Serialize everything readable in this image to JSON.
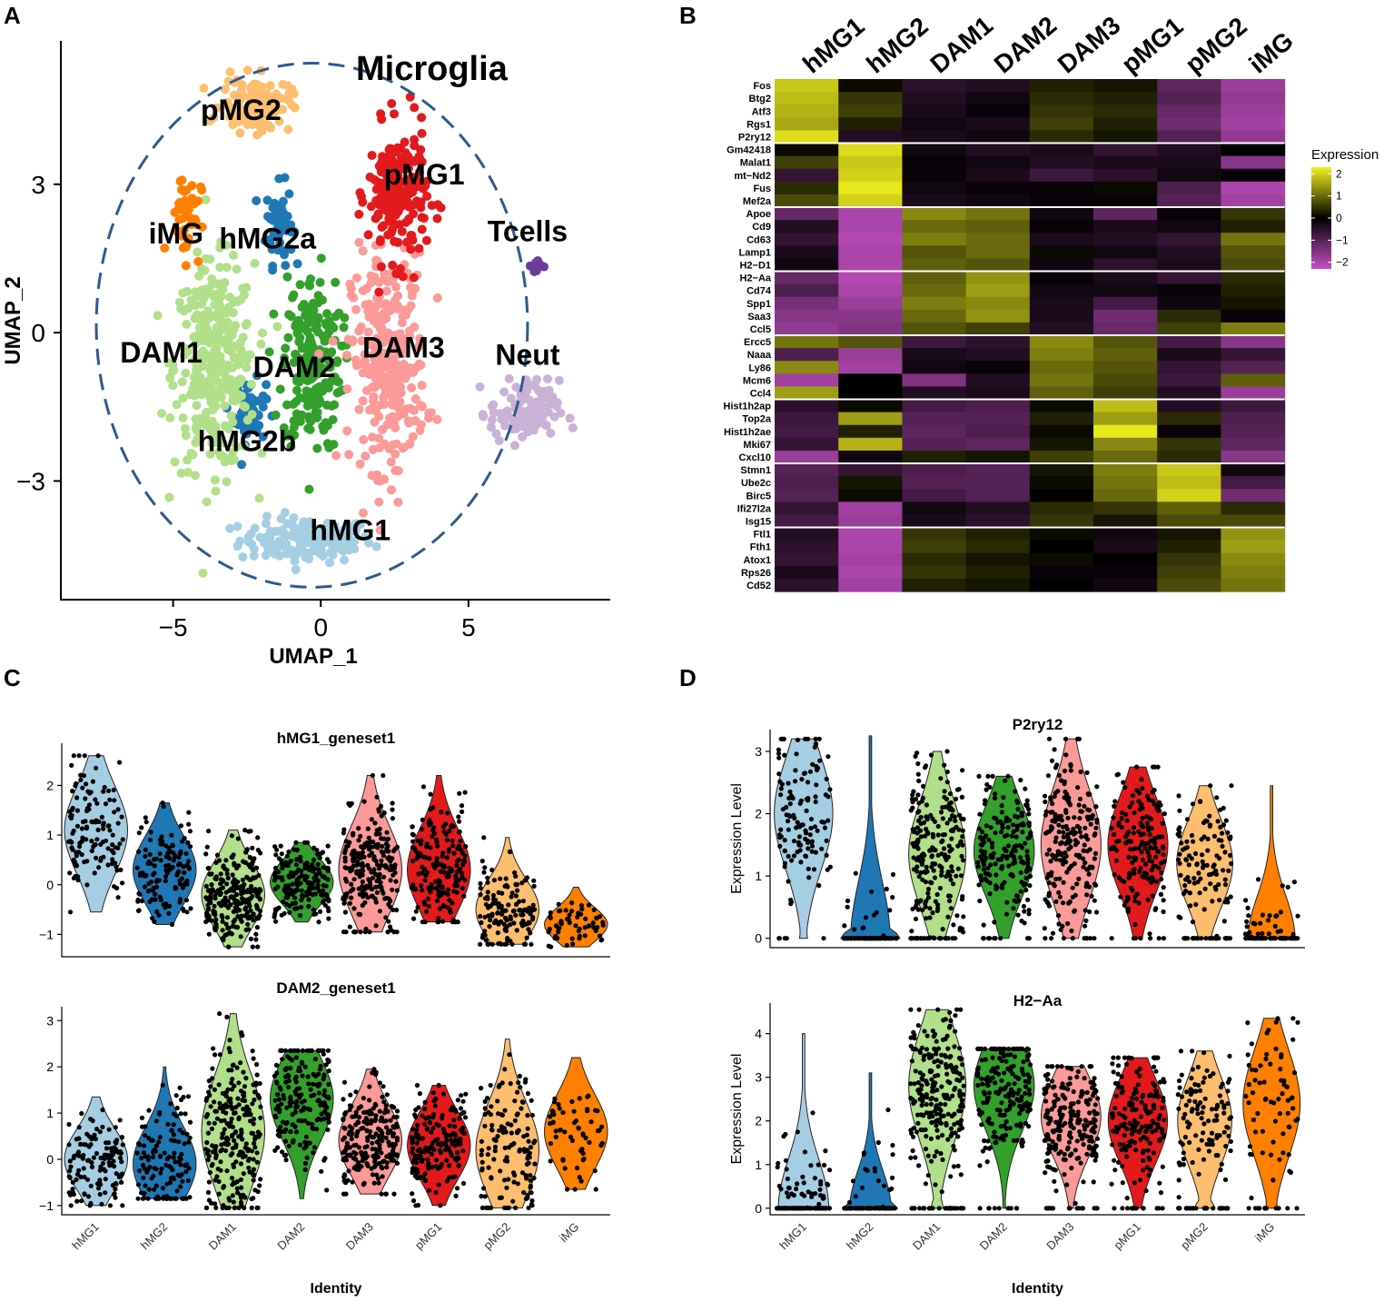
{
  "panels": {
    "A": "A",
    "B": "B",
    "C": "C",
    "D": "D"
  },
  "colors": {
    "hMG1": "#a6cee3",
    "hMG2": "#1f78b4",
    "DAM1": "#b2df8a",
    "DAM2": "#33a02c",
    "DAM3": "#fb9a99",
    "pMG1": "#e31a1c",
    "pMG2": "#fdbf6f",
    "iMG": "#ff7f00",
    "Tcells": "#6a3d9a",
    "Neut": "#cab2d6",
    "ellipse": "#2e5a8a",
    "heat_low": "#c44fc4",
    "heat_mid": "#000000",
    "heat_high": "#f2f21e"
  },
  "chart_data": [
    {
      "type": "scatter",
      "panel": "A",
      "xlabel": "UMAP_1",
      "ylabel": "UMAP_2",
      "xlim": [
        -8.8,
        9.8
      ],
      "ylim": [
        -5.4,
        5.9
      ],
      "xticks": [
        -5,
        0,
        5
      ],
      "yticks": [
        -3,
        0,
        3
      ],
      "xtick_labels": [
        "−5",
        "0",
        "5"
      ],
      "ytick_labels": [
        "−3",
        "0",
        "3"
      ],
      "grid": false,
      "annotation": "Microglia",
      "microglia_ellipse": {
        "center": [
          -0.3,
          0.15
        ],
        "radii": [
          7.3,
          5.3
        ]
      },
      "clusters": [
        {
          "name": "hMG1",
          "label": "hMG1",
          "center": [
            -0.5,
            -4.2
          ],
          "spread": [
            2.5,
            0.5
          ],
          "n": 150,
          "label_at": [
            1.0,
            -4.2
          ]
        },
        {
          "name": "hMG2a",
          "cluster": "hMG2",
          "label": "hMG2a",
          "center": [
            -1.4,
            2.2
          ],
          "spread": [
            0.5,
            0.9
          ],
          "n": 60,
          "label_at": [
            -1.8,
            1.7
          ]
        },
        {
          "name": "hMG2b",
          "cluster": "hMG2",
          "label": "hMG2b",
          "center": [
            -2.4,
            -1.6
          ],
          "spread": [
            0.6,
            0.7
          ],
          "n": 60,
          "label_at": [
            -2.5,
            -2.4
          ]
        },
        {
          "name": "DAM1",
          "label": "DAM1",
          "center": [
            -3.6,
            -0.7
          ],
          "spread": [
            1.5,
            2.3
          ],
          "n": 340,
          "label_at": [
            -5.4,
            -0.6
          ]
        },
        {
          "name": "DAM2",
          "label": "DAM2",
          "center": [
            -0.3,
            -0.6
          ],
          "spread": [
            1.1,
            2.0
          ],
          "n": 210,
          "label_at": [
            -0.9,
            -0.9
          ]
        },
        {
          "name": "DAM3",
          "label": "DAM3",
          "center": [
            2.3,
            -0.6
          ],
          "spread": [
            1.4,
            2.4
          ],
          "n": 300,
          "label_at": [
            2.8,
            -0.5
          ]
        },
        {
          "name": "pMG1",
          "label": "pMG1",
          "center": [
            2.6,
            2.8
          ],
          "spread": [
            1.1,
            1.5
          ],
          "n": 210,
          "label_at": [
            3.5,
            3.0
          ]
        },
        {
          "name": "pMG2",
          "label": "pMG2",
          "center": [
            -2.2,
            4.6
          ],
          "spread": [
            1.3,
            0.6
          ],
          "n": 120,
          "label_at": [
            -2.7,
            4.3
          ]
        },
        {
          "name": "iMG",
          "label": "iMG",
          "center": [
            -4.6,
            2.4
          ],
          "spread": [
            0.6,
            1.0
          ],
          "n": 45,
          "label_at": [
            -4.9,
            1.8
          ]
        },
        {
          "name": "Tcells",
          "label": "Tcells",
          "center": [
            7.3,
            1.35
          ],
          "spread": [
            0.2,
            0.15
          ],
          "n": 14,
          "label_at": [
            7.0,
            1.85
          ]
        },
        {
          "name": "Neut",
          "label": "Neut",
          "center": [
            6.9,
            -1.6
          ],
          "spread": [
            1.3,
            0.7
          ],
          "n": 110,
          "label_at": [
            7.0,
            -0.65
          ]
        }
      ]
    },
    {
      "type": "heatmap",
      "panel": "B",
      "legend_title": "Expression",
      "scale_range": [
        -2.3,
        2.3
      ],
      "legend_ticks": [
        2,
        1,
        0,
        -1,
        -2
      ],
      "legend_tick_labels": [
        "2",
        "1",
        "0",
        "−1",
        "−2"
      ],
      "columns": [
        "hMG1",
        "hMG2",
        "DAM1",
        "DAM2",
        "DAM3",
        "pMG1",
        "pMG2",
        "iMG"
      ],
      "block_separators_after_rows": [
        4,
        9,
        14,
        19,
        24,
        29,
        34
      ],
      "genes": [
        "Fos",
        "Btg2",
        "Atf3",
        "Rgs1",
        "P2ry12",
        "Gm42418",
        "Malat1",
        "mt−Nd2",
        "Fus",
        "Mef2a",
        "Apoe",
        "Cd9",
        "Cd63",
        "Lamp1",
        "H2−D1",
        "H2−Aa",
        "Cd74",
        "Spp1",
        "Saa3",
        "Ccl5",
        "Ercc5",
        "Naaa",
        "Ly86",
        "Mcm6",
        "Ccl4",
        "Hist1h2ap",
        "Top2a",
        "Hist1h2ae",
        "Mki67",
        "Cxcl10",
        "Stmn1",
        "Ube2c",
        "Birc5",
        "Ifi27l2a",
        "Isg15",
        "Ftl1",
        "Fth1",
        "Atox1",
        "Rps26",
        "Cd52"
      ],
      "values": [
        [
          1.9,
          0.1,
          -0.5,
          -0.4,
          0.3,
          0.2,
          -1.1,
          -1.8
        ],
        [
          1.8,
          0.5,
          -0.4,
          -0.2,
          0.4,
          0.3,
          -1.0,
          -1.7
        ],
        [
          1.7,
          0.6,
          -0.3,
          -0.1,
          0.5,
          0.4,
          -1.2,
          -1.8
        ],
        [
          1.6,
          0.3,
          -0.2,
          -0.3,
          0.6,
          0.3,
          -1.3,
          -1.9
        ],
        [
          2.1,
          -0.4,
          -0.3,
          -0.2,
          0.4,
          0.2,
          -1.0,
          -1.7
        ],
        [
          0.1,
          2.1,
          -0.2,
          -0.4,
          -0.3,
          -0.6,
          -0.4,
          0.0
        ],
        [
          0.6,
          1.9,
          -0.1,
          -0.2,
          -0.4,
          -0.3,
          -0.3,
          -1.6
        ],
        [
          -0.6,
          2.0,
          -0.1,
          -0.3,
          -0.7,
          -0.5,
          -0.2,
          -0.1
        ],
        [
          0.4,
          2.2,
          -0.2,
          -0.1,
          -0.1,
          0.1,
          -0.9,
          -2.0
        ],
        [
          0.7,
          2.0,
          -0.3,
          -0.2,
          -0.1,
          -0.1,
          -1.0,
          -1.9
        ],
        [
          -1.2,
          -2.0,
          1.3,
          1.1,
          -0.2,
          -1.1,
          -0.1,
          0.5
        ],
        [
          -0.4,
          -2.0,
          1.0,
          0.9,
          -0.1,
          -0.3,
          -0.2,
          0.3
        ],
        [
          -0.6,
          -2.1,
          1.2,
          1.0,
          -0.3,
          -0.4,
          -0.6,
          1.1
        ],
        [
          -0.3,
          -2.0,
          0.8,
          1.0,
          0.1,
          -0.2,
          -0.4,
          0.8
        ],
        [
          -0.2,
          -2.0,
          0.9,
          0.8,
          -0.2,
          -0.5,
          -0.3,
          0.7
        ],
        [
          -1.2,
          -2.1,
          0.9,
          1.4,
          -0.1,
          -0.3,
          -0.6,
          0.4
        ],
        [
          -0.9,
          -2.0,
          1.0,
          1.5,
          -0.2,
          -0.2,
          -0.1,
          0.3
        ],
        [
          -1.4,
          -1.8,
          1.2,
          1.3,
          -0.3,
          -0.8,
          -0.2,
          0.2
        ],
        [
          -1.6,
          -1.6,
          1.0,
          1.4,
          -0.3,
          -1.3,
          0.4,
          -0.1
        ],
        [
          -1.7,
          -1.5,
          0.8,
          0.6,
          -0.4,
          -1.2,
          0.6,
          1.2
        ],
        [
          1.1,
          0.8,
          -0.7,
          -0.5,
          1.3,
          0.8,
          -0.8,
          -1.6
        ],
        [
          -0.9,
          -1.8,
          -0.3,
          -0.4,
          1.2,
          0.9,
          -0.3,
          -0.6
        ],
        [
          1.3,
          -1.9,
          -0.2,
          -0.1,
          1.0,
          0.8,
          -0.6,
          -1.0
        ],
        [
          -1.9,
          0.0,
          -1.5,
          -0.4,
          1.1,
          0.7,
          -0.7,
          0.9
        ],
        [
          1.5,
          0.0,
          -0.4,
          -0.3,
          0.9,
          0.6,
          -0.4,
          -1.8
        ],
        [
          -0.5,
          0.1,
          -0.8,
          -0.9,
          0.1,
          1.8,
          -0.4,
          -0.7
        ],
        [
          -0.7,
          1.5,
          -1.0,
          -1.0,
          0.3,
          1.5,
          0.4,
          -0.9
        ],
        [
          -0.8,
          0.3,
          -1.1,
          -0.9,
          0.1,
          2.2,
          -0.1,
          -1.0
        ],
        [
          -0.6,
          1.7,
          -1.0,
          -1.1,
          0.2,
          1.3,
          0.5,
          -1.1
        ],
        [
          -1.8,
          -0.2,
          0.3,
          0.2,
          0.6,
          1.0,
          0.4,
          -1.6
        ],
        [
          -1.0,
          -0.6,
          -0.9,
          -1.0,
          0.2,
          1.2,
          1.9,
          -0.2
        ],
        [
          -0.9,
          0.2,
          -1.0,
          -1.0,
          0.1,
          1.1,
          1.8,
          -0.8
        ],
        [
          -1.0,
          0.1,
          -0.8,
          -1.0,
          0.0,
          1.0,
          2.0,
          -1.3
        ],
        [
          -0.6,
          -1.9,
          -0.2,
          -0.4,
          0.4,
          0.5,
          0.9,
          0.4
        ],
        [
          -0.8,
          -1.8,
          -0.3,
          -0.5,
          0.5,
          0.2,
          0.7,
          0.7
        ],
        [
          -0.4,
          -2.0,
          0.5,
          0.3,
          0.1,
          -0.2,
          0.2,
          1.4
        ],
        [
          -0.5,
          -2.0,
          0.6,
          0.4,
          0.0,
          -0.3,
          0.3,
          1.5
        ],
        [
          -0.6,
          -1.9,
          0.4,
          0.2,
          0.1,
          0.0,
          0.5,
          1.3
        ],
        [
          -0.3,
          -2.0,
          0.5,
          0.3,
          -0.1,
          -0.1,
          0.6,
          1.2
        ],
        [
          -0.5,
          -1.9,
          0.3,
          0.2,
          0.0,
          -0.2,
          0.7,
          1.1
        ]
      ]
    },
    {
      "type": "violin",
      "panel": "C",
      "title": "hMG1_geneset1",
      "xlabel": "",
      "ylabel": "",
      "ylim": [
        -1.45,
        2.85
      ],
      "yticks": [
        -1,
        0,
        1,
        2
      ],
      "ytick_labels": [
        "−1",
        "0",
        "1",
        "2"
      ],
      "categories": [
        "hMG1",
        "hMG2",
        "DAM1",
        "DAM2",
        "DAM3",
        "pMG1",
        "pMG2",
        "iMG"
      ],
      "series": [
        {
          "name": "hMG1",
          "range": [
            -0.55,
            2.6
          ],
          "mode": 1.1,
          "n": 130
        },
        {
          "name": "hMG2",
          "range": [
            -0.8,
            1.65
          ],
          "mode": 0.3,
          "n": 140
        },
        {
          "name": "DAM1",
          "range": [
            -1.25,
            1.1
          ],
          "mode": -0.2,
          "n": 260
        },
        {
          "name": "DAM2",
          "range": [
            -0.75,
            0.85
          ],
          "mode": 0.05,
          "n": 200
        },
        {
          "name": "DAM3",
          "range": [
            -0.95,
            2.2
          ],
          "mode": 0.3,
          "n": 230
        },
        {
          "name": "pMG1",
          "range": [
            -0.75,
            2.2
          ],
          "mode": 0.3,
          "n": 180
        },
        {
          "name": "pMG2",
          "range": [
            -1.2,
            0.95
          ],
          "mode": -0.5,
          "n": 140
        },
        {
          "name": "iMG",
          "range": [
            -1.25,
            -0.05
          ],
          "mode": -0.8,
          "n": 60
        }
      ]
    },
    {
      "type": "violin",
      "panel": "C",
      "title": "DAM2_geneset1",
      "xlabel": "Identity",
      "ylabel": "",
      "ylim": [
        -1.2,
        3.3
      ],
      "yticks": [
        -1,
        0,
        1,
        2,
        3
      ],
      "ytick_labels": [
        "−1",
        "0",
        "1",
        "2",
        "3"
      ],
      "categories": [
        "hMG1",
        "hMG2",
        "DAM1",
        "DAM2",
        "DAM3",
        "pMG1",
        "pMG2",
        "iMG"
      ],
      "series": [
        {
          "name": "hMG1",
          "range": [
            -1.0,
            1.35
          ],
          "mode": 0.0,
          "n": 130
        },
        {
          "name": "hMG2",
          "range": [
            -0.85,
            2.0
          ],
          "mode": -0.1,
          "n": 140
        },
        {
          "name": "DAM1",
          "range": [
            -1.05,
            3.15
          ],
          "mode": 0.6,
          "n": 260
        },
        {
          "name": "DAM2",
          "range": [
            -0.85,
            2.35
          ],
          "mode": 1.3,
          "n": 200
        },
        {
          "name": "DAM3",
          "range": [
            -0.75,
            1.95
          ],
          "mode": 0.4,
          "n": 230
        },
        {
          "name": "pMG1",
          "range": [
            -1.0,
            1.6
          ],
          "mode": 0.3,
          "n": 180
        },
        {
          "name": "pMG2",
          "range": [
            -1.05,
            2.6
          ],
          "mode": 0.2,
          "n": 140
        },
        {
          "name": "iMG",
          "range": [
            -0.65,
            2.2
          ],
          "mode": 0.6,
          "n": 60
        }
      ]
    },
    {
      "type": "violin",
      "panel": "D",
      "title": "P2ry12",
      "xlabel": "",
      "ylabel": "Expression Level",
      "ylim": [
        -0.15,
        3.35
      ],
      "yticks": [
        0,
        1,
        2,
        3
      ],
      "ytick_labels": [
        "0",
        "1",
        "2",
        "3"
      ],
      "categories": [
        "hMG1",
        "hMG2",
        "DAM1",
        "DAM2",
        "DAM3",
        "pMG1",
        "pMG2",
        "iMG"
      ],
      "series": [
        {
          "name": "hMG1",
          "range": [
            0.0,
            3.2
          ],
          "mode": 2.0,
          "n": 130,
          "zero_frac": 0.08
        },
        {
          "name": "hMG2",
          "range": [
            0.0,
            3.25
          ],
          "mode": 0.0,
          "n": 100,
          "zero_frac": 0.6
        },
        {
          "name": "DAM1",
          "range": [
            0.0,
            3.0
          ],
          "mode": 1.35,
          "n": 240,
          "zero_frac": 0.12
        },
        {
          "name": "DAM2",
          "range": [
            0.0,
            2.6
          ],
          "mode": 1.4,
          "n": 200,
          "zero_frac": 0.03
        },
        {
          "name": "DAM3",
          "range": [
            0.0,
            3.2
          ],
          "mode": 1.5,
          "n": 230,
          "zero_frac": 0.04
        },
        {
          "name": "pMG1",
          "range": [
            0.0,
            2.75
          ],
          "mode": 1.5,
          "n": 180,
          "zero_frac": 0.04
        },
        {
          "name": "pMG2",
          "range": [
            0.0,
            2.45
          ],
          "mode": 1.2,
          "n": 140,
          "zero_frac": 0.15
        },
        {
          "name": "iMG",
          "range": [
            0.0,
            2.45
          ],
          "mode": 0.0,
          "n": 80,
          "zero_frac": 0.4
        }
      ]
    },
    {
      "type": "violin",
      "panel": "D",
      "title": "H2−Aa",
      "xlabel": "Identity",
      "ylabel": "Expression Level",
      "ylim": [
        -0.15,
        4.7
      ],
      "yticks": [
        0,
        1,
        2,
        3,
        4
      ],
      "ytick_labels": [
        "0",
        "1",
        "2",
        "3",
        "4"
      ],
      "categories": [
        "hMG1",
        "hMG2",
        "DAM1",
        "DAM2",
        "DAM3",
        "pMG1",
        "pMG2",
        "iMG"
      ],
      "series": [
        {
          "name": "hMG1",
          "range": [
            0.0,
            4.0
          ],
          "mode": 0.0,
          "n": 130,
          "zero_frac": 0.3
        },
        {
          "name": "hMG2",
          "range": [
            0.0,
            3.1
          ],
          "mode": 0.0,
          "n": 90,
          "zero_frac": 0.55
        },
        {
          "name": "DAM1",
          "range": [
            0.0,
            4.55
          ],
          "mode": 2.8,
          "n": 260,
          "zero_frac": 0.12
        },
        {
          "name": "DAM2",
          "range": [
            0.0,
            3.65
          ],
          "mode": 2.8,
          "n": 200,
          "zero_frac": 0.03
        },
        {
          "name": "DAM3",
          "range": [
            0.0,
            3.25
          ],
          "mode": 2.1,
          "n": 230,
          "zero_frac": 0.05
        },
        {
          "name": "pMG1",
          "range": [
            0.0,
            3.45
          ],
          "mode": 2.0,
          "n": 180,
          "zero_frac": 0.06
        },
        {
          "name": "pMG2",
          "range": [
            0.0,
            3.6
          ],
          "mode": 2.0,
          "n": 140,
          "zero_frac": 0.2
        },
        {
          "name": "iMG",
          "range": [
            0.0,
            4.35
          ],
          "mode": 2.4,
          "n": 80,
          "zero_frac": 0.12
        }
      ]
    }
  ]
}
